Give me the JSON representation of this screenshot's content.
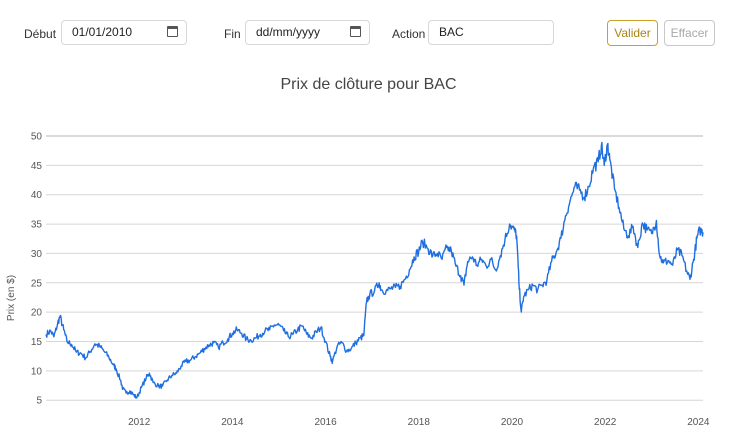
{
  "form": {
    "debut_label": "Début",
    "debut_value": "01/01/2010",
    "fin_label": "Fin",
    "fin_value": "dd/mm/yyyy",
    "action_label": "Action",
    "action_value": "BAC",
    "valider_label": "Valider",
    "effacer_label": "Effacer"
  },
  "colors": {
    "line": "#1f6fe0",
    "valider": "#c9a227",
    "grid": "#d6d6d6"
  },
  "chart_data": {
    "type": "line",
    "title": "Prix de clôture pour BAC",
    "xlabel": "",
    "ylabel": "Prix (en $)",
    "xlim": [
      2010.0,
      2024.1
    ],
    "ylim": [
      3.5,
      50
    ],
    "grid": true,
    "xticks": [
      "2012",
      "2014",
      "2016",
      "2018",
      "2020",
      "2022",
      "2024"
    ],
    "yticks": [
      "5",
      "10",
      "15",
      "20",
      "25",
      "30",
      "35",
      "40",
      "45",
      "50"
    ],
    "series": [
      {
        "name": "",
        "color": "#1f6fe0",
        "points": [
          [
            2010.0,
            16.2
          ],
          [
            2010.1,
            16.8
          ],
          [
            2010.17,
            15.8
          ],
          [
            2010.25,
            18.0
          ],
          [
            2010.3,
            19.3
          ],
          [
            2010.38,
            17.0
          ],
          [
            2010.45,
            15.0
          ],
          [
            2010.55,
            14.5
          ],
          [
            2010.65,
            13.2
          ],
          [
            2010.75,
            13.0
          ],
          [
            2010.85,
            12.2
          ],
          [
            2010.95,
            13.3
          ],
          [
            2011.05,
            14.6
          ],
          [
            2011.15,
            14.2
          ],
          [
            2011.25,
            13.3
          ],
          [
            2011.35,
            12.3
          ],
          [
            2011.45,
            11.0
          ],
          [
            2011.5,
            10.4
          ],
          [
            2011.6,
            8.4
          ],
          [
            2011.65,
            6.9
          ],
          [
            2011.72,
            6.2
          ],
          [
            2011.8,
            6.6
          ],
          [
            2011.88,
            5.9
          ],
          [
            2011.95,
            5.4
          ],
          [
            2012.05,
            7.2
          ],
          [
            2012.15,
            8.8
          ],
          [
            2012.22,
            9.6
          ],
          [
            2012.3,
            8.0
          ],
          [
            2012.42,
            7.4
          ],
          [
            2012.5,
            7.4
          ],
          [
            2012.6,
            8.4
          ],
          [
            2012.7,
            9.2
          ],
          [
            2012.8,
            9.6
          ],
          [
            2012.9,
            10.8
          ],
          [
            2013.0,
            11.6
          ],
          [
            2013.1,
            11.8
          ],
          [
            2013.2,
            12.4
          ],
          [
            2013.3,
            13.0
          ],
          [
            2013.4,
            13.8
          ],
          [
            2013.5,
            14.4
          ],
          [
            2013.6,
            14.8
          ],
          [
            2013.7,
            14.0
          ],
          [
            2013.8,
            14.8
          ],
          [
            2013.9,
            15.4
          ],
          [
            2014.0,
            16.4
          ],
          [
            2014.1,
            17.0
          ],
          [
            2014.2,
            16.4
          ],
          [
            2014.3,
            15.4
          ],
          [
            2014.4,
            15.2
          ],
          [
            2014.5,
            15.6
          ],
          [
            2014.6,
            16.2
          ],
          [
            2014.7,
            16.8
          ],
          [
            2014.8,
            17.0
          ],
          [
            2014.9,
            17.8
          ],
          [
            2015.0,
            17.8
          ],
          [
            2015.1,
            16.8
          ],
          [
            2015.2,
            15.8
          ],
          [
            2015.3,
            16.2
          ],
          [
            2015.4,
            17.0
          ],
          [
            2015.5,
            17.6
          ],
          [
            2015.6,
            16.2
          ],
          [
            2015.7,
            15.6
          ],
          [
            2015.8,
            16.6
          ],
          [
            2015.9,
            17.4
          ],
          [
            2016.0,
            15.0
          ],
          [
            2016.1,
            12.4
          ],
          [
            2016.15,
            11.6
          ],
          [
            2016.25,
            14.2
          ],
          [
            2016.35,
            14.8
          ],
          [
            2016.45,
            13.4
          ],
          [
            2016.55,
            13.8
          ],
          [
            2016.65,
            14.8
          ],
          [
            2016.75,
            15.6
          ],
          [
            2016.82,
            16.0
          ],
          [
            2016.88,
            21.8
          ],
          [
            2016.95,
            23.0
          ],
          [
            2017.05,
            23.6
          ],
          [
            2017.15,
            25.0
          ],
          [
            2017.2,
            23.8
          ],
          [
            2017.3,
            23.6
          ],
          [
            2017.4,
            24.0
          ],
          [
            2017.5,
            24.2
          ],
          [
            2017.6,
            24.4
          ],
          [
            2017.7,
            25.6
          ],
          [
            2017.8,
            27.2
          ],
          [
            2017.9,
            29.4
          ],
          [
            2018.0,
            30.4
          ],
          [
            2018.08,
            32.0
          ],
          [
            2018.2,
            30.8
          ],
          [
            2018.3,
            29.6
          ],
          [
            2018.4,
            30.0
          ],
          [
            2018.5,
            29.0
          ],
          [
            2018.6,
            31.0
          ],
          [
            2018.7,
            30.4
          ],
          [
            2018.8,
            27.8
          ],
          [
            2018.9,
            26.2
          ],
          [
            2018.97,
            24.6
          ],
          [
            2019.05,
            28.6
          ],
          [
            2019.15,
            29.4
          ],
          [
            2019.25,
            28.0
          ],
          [
            2019.35,
            29.0
          ],
          [
            2019.45,
            27.8
          ],
          [
            2019.55,
            29.0
          ],
          [
            2019.65,
            27.2
          ],
          [
            2019.75,
            29.6
          ],
          [
            2019.85,
            32.4
          ],
          [
            2019.95,
            35.0
          ],
          [
            2020.05,
            34.0
          ],
          [
            2020.1,
            33.0
          ],
          [
            2020.15,
            25.0
          ],
          [
            2020.2,
            20.0
          ],
          [
            2020.25,
            22.6
          ],
          [
            2020.35,
            23.8
          ],
          [
            2020.45,
            24.6
          ],
          [
            2020.55,
            23.8
          ],
          [
            2020.65,
            24.6
          ],
          [
            2020.75,
            25.4
          ],
          [
            2020.85,
            28.6
          ],
          [
            2020.95,
            30.2
          ],
          [
            2021.05,
            32.6
          ],
          [
            2021.15,
            36.4
          ],
          [
            2021.25,
            39.0
          ],
          [
            2021.35,
            41.4
          ],
          [
            2021.45,
            40.8
          ],
          [
            2021.55,
            39.6
          ],
          [
            2021.65,
            41.4
          ],
          [
            2021.75,
            44.6
          ],
          [
            2021.85,
            45.6
          ],
          [
            2021.92,
            48.4
          ],
          [
            2021.98,
            45.0
          ],
          [
            2022.05,
            48.6
          ],
          [
            2022.1,
            46.0
          ],
          [
            2022.2,
            41.0
          ],
          [
            2022.3,
            37.8
          ],
          [
            2022.4,
            34.2
          ],
          [
            2022.5,
            33.0
          ],
          [
            2022.6,
            34.6
          ],
          [
            2022.7,
            31.0
          ],
          [
            2022.8,
            35.2
          ],
          [
            2022.9,
            34.0
          ],
          [
            2023.0,
            33.4
          ],
          [
            2023.1,
            35.6
          ],
          [
            2023.17,
            29.6
          ],
          [
            2023.25,
            28.4
          ],
          [
            2023.35,
            28.8
          ],
          [
            2023.45,
            28.0
          ],
          [
            2023.55,
            30.6
          ],
          [
            2023.65,
            29.6
          ],
          [
            2023.75,
            27.0
          ],
          [
            2023.82,
            25.6
          ],
          [
            2023.9,
            29.0
          ],
          [
            2023.97,
            32.6
          ],
          [
            2024.03,
            34.0
          ],
          [
            2024.1,
            33.6
          ]
        ]
      }
    ]
  }
}
